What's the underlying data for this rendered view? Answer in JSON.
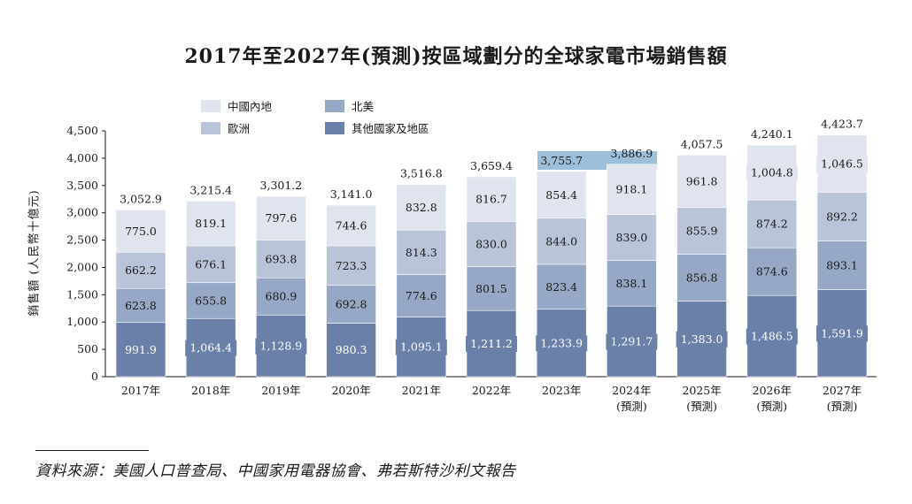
{
  "chart_data": {
    "type": "bar",
    "stacked": true,
    "title": "2017年至2027年(預測)按區域劃分的全球家電市場銷售額",
    "ylabel": "銷售額 (人民幣十億元)",
    "xlabel": "",
    "ylim": [
      0,
      4500
    ],
    "yticks": [
      "0",
      "500",
      "1,000",
      "1,500",
      "2,000",
      "2,500",
      "3,000",
      "3,500",
      "4,000",
      "4,500"
    ],
    "yticks_values": [
      0,
      500,
      1000,
      1500,
      2000,
      2500,
      3000,
      3500,
      4000,
      4500
    ],
    "categories": [
      "2017年",
      "2018年",
      "2019年",
      "2020年",
      "2021年",
      "2022年",
      "2023年",
      "2024年",
      "2025年",
      "2026年",
      "2027年"
    ],
    "category_sublabels": [
      "",
      "",
      "",
      "",
      "",
      "",
      "",
      "(預測)",
      "(預測)",
      "(預測)",
      "(預測)"
    ],
    "totals": [
      "3,052.9",
      "3,215.4",
      "3,301.2",
      "3,141.0",
      "3,516.8",
      "3,659.4",
      "3,755.7",
      "3,886.9",
      "4,057.5",
      "4,240.1",
      "4,423.7"
    ],
    "totals_values": [
      3052.9,
      3215.4,
      3301.2,
      3141.0,
      3516.8,
      3659.4,
      3755.7,
      3886.9,
      4057.5,
      4240.1,
      4423.7
    ],
    "series": [
      {
        "name": "其他國家及地區",
        "color": "#6a80a8",
        "values": [
          991.9,
          1064.4,
          1128.9,
          980.3,
          1095.1,
          1211.2,
          1233.9,
          1291.7,
          1383.0,
          1486.5,
          1591.9
        ],
        "labels": [
          "991.9",
          "1,064.4",
          "1,128.9",
          "980.3",
          "1,095.1",
          "1,211.2",
          "1,233.9",
          "1,291.7",
          "1,383.0",
          "1,486.5",
          "1,591.9"
        ]
      },
      {
        "name": "北美",
        "color": "#97a8c6",
        "values": [
          623.8,
          655.8,
          680.9,
          692.8,
          774.6,
          801.5,
          823.4,
          838.1,
          856.8,
          874.6,
          893.1
        ],
        "labels": [
          "623.8",
          "655.8",
          "680.9",
          "692.8",
          "774.6",
          "801.5",
          "823.4",
          "838.1",
          "856.8",
          "874.6",
          "893.1"
        ]
      },
      {
        "name": "歐洲",
        "color": "#b9c4d9",
        "values": [
          662.2,
          676.1,
          693.8,
          723.3,
          814.3,
          830.0,
          844.0,
          839.0,
          855.9,
          874.2,
          892.2
        ],
        "labels": [
          "662.2",
          "676.1",
          "693.8",
          "723.3",
          "814.3",
          "830.0",
          "844.0",
          "839.0",
          "855.9",
          "874.2",
          "892.2"
        ]
      },
      {
        "name": "中國內地",
        "color": "#dfe4ee",
        "values": [
          775.0,
          819.1,
          797.6,
          744.6,
          832.8,
          816.7,
          854.4,
          918.1,
          961.8,
          1004.8,
          1046.5
        ],
        "labels": [
          "775.0",
          "819.1",
          "797.6",
          "744.6",
          "832.8",
          "816.7",
          "854.4",
          "918.1",
          "961.8",
          "1,004.8",
          "1,046.5"
        ]
      }
    ],
    "legend": {
      "placement": "top-left",
      "entries": [
        "中國內地",
        "北美",
        "歐洲",
        "其他國家及地區"
      ],
      "colors": [
        "#dfe4ee",
        "#97a8c6",
        "#b9c4d9",
        "#6a80a8"
      ]
    },
    "highlight_color": "#9dbfda",
    "grid": false
  },
  "source_note": "資料來源：美國人口普查局、中國家用電器協會、弗若斯特沙利文報告"
}
